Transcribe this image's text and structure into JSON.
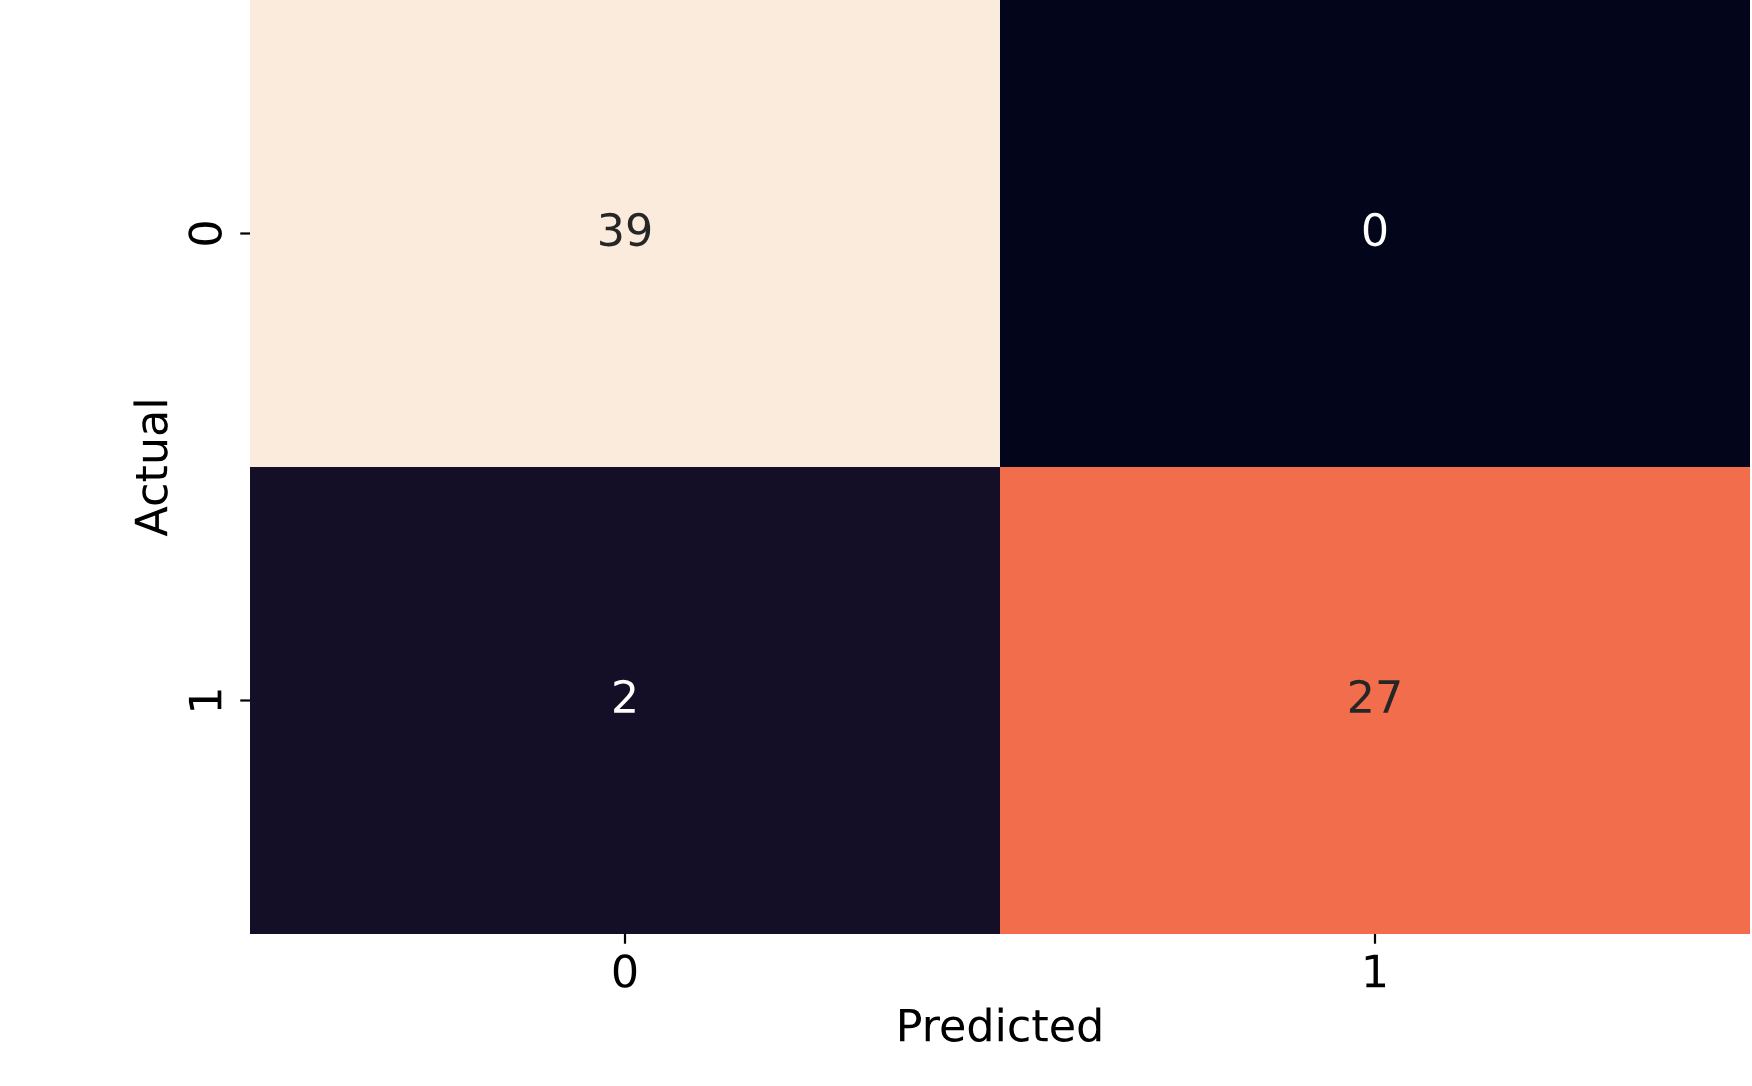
{
  "chart_data": {
    "type": "heatmap",
    "xlabel": "Predicted",
    "ylabel": "Actual",
    "categories": [
      "0",
      "1"
    ],
    "y_categories": [
      "0",
      "1"
    ],
    "cells": [
      [
        39,
        0
      ],
      [
        2,
        27
      ]
    ],
    "data_labels": true
  }
}
